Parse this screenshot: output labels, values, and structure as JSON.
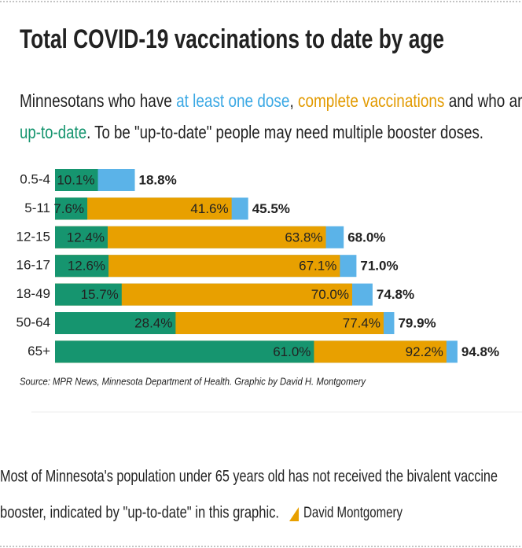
{
  "chart_data": {
    "type": "bar",
    "title": "Total COVID-19 vaccinations to date by age",
    "subtitle": [
      [
        "Minnesotans who have ",
        "at least one dose",
        ", ",
        "complete vaccinations",
        " and who are"
      ],
      [
        "up-to-date",
        ". To be \"up-to-date\" people may need multiple booster doses."
      ]
    ],
    "categories": [
      "0.5-4",
      "5-11",
      "12-15",
      "16-17",
      "18-49",
      "50-64",
      "65+"
    ],
    "series": [
      {
        "name": "at least one dose",
        "color": "#5bb3e8",
        "values": [
          18.8,
          45.5,
          68.0,
          71.0,
          74.8,
          79.9,
          94.8
        ],
        "value_labels": [
          "18.8%",
          "45.5%",
          "68.0%",
          "71.0%",
          "74.8%",
          "79.9%",
          "94.8%"
        ]
      },
      {
        "name": "complete vaccinations",
        "color": "#e8a000",
        "values": [
          null,
          41.6,
          63.8,
          67.1,
          70.0,
          77.4,
          92.2
        ],
        "value_labels": [
          null,
          "41.6%",
          "63.8%",
          "67.1%",
          "70.0%",
          "77.4%",
          "92.2%"
        ]
      },
      {
        "name": "up-to-date",
        "color": "#16956f",
        "values": [
          10.1,
          7.6,
          12.4,
          12.6,
          15.7,
          28.4,
          61.0
        ],
        "value_labels": [
          "10.1%",
          "7.6%",
          "12.4%",
          "12.6%",
          "15.7%",
          "28.4%",
          "61.0%"
        ]
      }
    ],
    "xlim": [
      0,
      100
    ],
    "source": "Source: MPR News, Minnesota Department of Health. Graphic by David H. Montgomery"
  },
  "caption": [
    "Most of Minnesota's population under 65 years old has not received the bivalent vaccine",
    "booster, indicated by \"up-to-date\" in this graphic."
  ],
  "credit": "David Montgomery"
}
